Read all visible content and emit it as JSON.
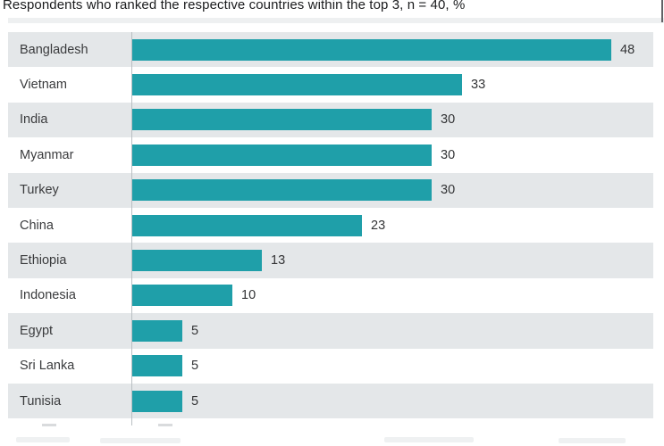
{
  "title": "Respondents who ranked the respective countries within the top 3, n = 40, %",
  "chart_data": {
    "type": "bar",
    "orientation": "horizontal",
    "title": "Respondents who ranked the respective countries within the top 3, n = 40, %",
    "categories": [
      "Bangladesh",
      "Vietnam",
      "India",
      "Myanmar",
      "Turkey",
      "China",
      "Ethiopia",
      "Indonesia",
      "Egypt",
      "Sri Lanka",
      "Tunisia"
    ],
    "values": [
      48,
      33,
      30,
      30,
      30,
      23,
      13,
      10,
      5,
      5,
      5
    ],
    "unit": "%",
    "sample_size": "n = 40",
    "xlim": [
      0,
      52
    ],
    "grid": false,
    "legend": false,
    "value_labels": "outside-end",
    "bar_color": "#1f9fa9",
    "row_stripe_color": "#e4e7e9",
    "axis_line_color": "#b9bfc3"
  },
  "colors": {
    "bar": "#1f9fa9",
    "row_stripe": "#e4e7e9",
    "background": "#ffffff",
    "title_text": "#1b1c1e",
    "label_text": "#3a3b3d",
    "value_text": "#333436",
    "axis_line": "#b9bfc3"
  }
}
